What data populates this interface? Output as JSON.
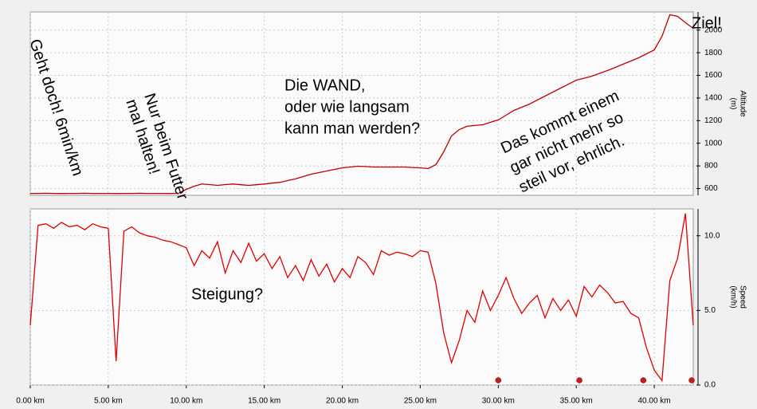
{
  "chart_data": [
    {
      "type": "line",
      "y_label": "Altitude",
      "y_unit": "(m)",
      "color": "#c00000",
      "xlim": [
        0,
        42.5
      ],
      "ylim": [
        540,
        2160
      ],
      "xticks": [
        0,
        5,
        10,
        15,
        20,
        25,
        30,
        35,
        40
      ],
      "yticks": [
        600,
        800,
        1000,
        1200,
        1400,
        1600,
        1800,
        2000
      ],
      "grid": true,
      "x": [
        0,
        0.5,
        1,
        1.5,
        2,
        2.5,
        3,
        3.5,
        4,
        4.5,
        5,
        5.5,
        6,
        6.5,
        7,
        7.5,
        8,
        8.5,
        9,
        9.5,
        10,
        10.5,
        11,
        11.5,
        12,
        12.5,
        13,
        13.5,
        14,
        14.5,
        15,
        15.5,
        16,
        16.5,
        17,
        17.5,
        18,
        18.5,
        19,
        19.5,
        20,
        20.5,
        21,
        21.5,
        22,
        22.5,
        23,
        23.5,
        24,
        24.5,
        25,
        25.5,
        26,
        26.5,
        27,
        27.5,
        28,
        28.5,
        29,
        29.5,
        30,
        30.5,
        31,
        31.5,
        32,
        32.5,
        33,
        33.5,
        34,
        34.5,
        35,
        35.5,
        36,
        36.5,
        37,
        37.5,
        38,
        38.5,
        39,
        39.5,
        40,
        40.5,
        41,
        41.5,
        42,
        42.5
      ],
      "values": [
        557,
        557,
        558,
        557,
        556,
        557,
        557,
        558,
        557,
        557,
        557,
        556,
        557,
        557,
        558,
        557,
        557,
        557,
        556,
        558,
        593,
        620,
        640,
        635,
        628,
        635,
        640,
        634,
        628,
        634,
        640,
        648,
        655,
        670,
        685,
        706,
        727,
        741,
        755,
        769,
        783,
        790,
        797,
        794,
        790,
        790,
        790,
        790,
        790,
        786,
        783,
        776,
        811,
        924,
        1065,
        1121,
        1150,
        1157,
        1163,
        1185,
        1206,
        1248,
        1290,
        1318,
        1346,
        1382,
        1417,
        1452,
        1487,
        1522,
        1558,
        1575,
        1593,
        1618,
        1642,
        1670,
        1699,
        1727,
        1755,
        1790,
        1825,
        1945,
        2135,
        2121,
        2065,
        2015
      ],
      "annotations": [
        {
          "lines": [
            "Geht doch! 6min/km"
          ]
        },
        {
          "lines": [
            "Nur beim Futter",
            "mal halten!"
          ]
        },
        {
          "lines": [
            "Die WAND,",
            "oder wie langsam",
            "kann man werden?"
          ]
        },
        {
          "lines": [
            "Das kommt einem",
            "gar nicht mehr so",
            "steil vor, ehrlich."
          ]
        },
        {
          "lines": [
            "Ziel!"
          ]
        }
      ]
    },
    {
      "type": "line",
      "y_label": "Speed",
      "y_unit": "(km/h)",
      "color": "#e00000",
      "xlim": [
        0,
        42.5
      ],
      "ylim": [
        0,
        11.8
      ],
      "xticks": [
        {
          "value": 0,
          "label": "0.00 km"
        },
        {
          "value": 5,
          "label": "5.00 km"
        },
        {
          "value": 10,
          "label": "10.00 km"
        },
        {
          "value": 15,
          "label": "15.00 km"
        },
        {
          "value": 20,
          "label": "20.00 km"
        },
        {
          "value": 25,
          "label": "25.00 km"
        },
        {
          "value": 30,
          "label": "30.00 km"
        },
        {
          "value": 35,
          "label": "35.00 km"
        },
        {
          "value": 40,
          "label": "40.00 km"
        }
      ],
      "yticks": [
        {
          "value": 0,
          "label": "0.0"
        },
        {
          "value": 5,
          "label": "5.0"
        },
        {
          "value": 10,
          "label": "10.0"
        }
      ],
      "grid": true,
      "x": [
        0,
        0.5,
        1,
        1.5,
        2,
        2.5,
        3,
        3.5,
        4,
        4.5,
        5,
        5.5,
        6,
        6.5,
        7,
        7.5,
        8,
        8.5,
        9,
        9.5,
        10,
        10.5,
        11,
        11.5,
        12,
        12.5,
        13,
        13.5,
        14,
        14.5,
        15,
        15.5,
        16,
        16.5,
        17,
        17.5,
        18,
        18.5,
        19,
        19.5,
        20,
        20.5,
        21,
        21.5,
        22,
        22.5,
        23,
        23.5,
        24,
        24.5,
        25,
        25.5,
        26,
        26.5,
        27,
        27.5,
        28,
        28.5,
        29,
        29.5,
        30,
        30.5,
        31,
        31.5,
        32,
        32.5,
        33,
        33.5,
        34,
        34.5,
        35,
        35.5,
        36,
        36.5,
        37,
        37.5,
        38,
        38.5,
        39,
        39.5,
        40,
        40.5,
        41,
        41.5,
        42,
        42.5
      ],
      "values": [
        4.0,
        10.7,
        10.8,
        10.5,
        10.9,
        10.6,
        10.7,
        10.4,
        10.8,
        10.6,
        10.5,
        1.6,
        10.3,
        10.6,
        10.2,
        10.0,
        9.9,
        9.7,
        9.6,
        9.4,
        9.2,
        8.0,
        9.0,
        8.5,
        9.6,
        7.5,
        9.0,
        8.2,
        9.5,
        8.3,
        8.8,
        7.8,
        8.6,
        7.2,
        8.0,
        7.0,
        8.4,
        7.3,
        8.1,
        6.9,
        7.8,
        7.2,
        8.6,
        8.2,
        7.4,
        9.0,
        8.7,
        8.9,
        8.8,
        8.6,
        9.0,
        8.9,
        6.8,
        3.5,
        1.5,
        3.0,
        5.0,
        4.2,
        6.3,
        5.0,
        6.0,
        7.2,
        5.8,
        4.8,
        5.5,
        6.0,
        4.5,
        5.8,
        5.0,
        5.7,
        4.6,
        6.6,
        5.9,
        6.7,
        6.2,
        5.5,
        5.6,
        4.8,
        4.5,
        2.5,
        1.0,
        0.3,
        7.0,
        8.5,
        11.5,
        4.0
      ],
      "markers": [
        30.0,
        35.2,
        39.3,
        42.4
      ],
      "marker_color": "#c02020",
      "annotations": [
        {
          "lines": [
            "Steigung?"
          ],
          "color": "#ff2020"
        }
      ]
    }
  ]
}
